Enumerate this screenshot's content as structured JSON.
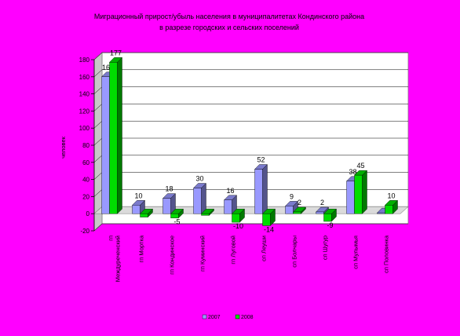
{
  "chart_data": {
    "type": "bar",
    "title": [
      "Миграционный прирост/убыль населения в муниципалитетах Кондинского района",
      "в разрезе городских и сельских поселений"
    ],
    "ylabel": "человек",
    "ylim": [
      -20,
      180
    ],
    "yticks": [
      -20,
      0,
      20,
      40,
      60,
      80,
      100,
      120,
      140,
      160,
      180
    ],
    "grid": true,
    "legend_position": "bottom",
    "categories": [
      [
        "гп",
        "Междуреченский"
      ],
      [
        "гп Мортка"
      ],
      [
        "гп Кондинское"
      ],
      [
        "гп Куминский"
      ],
      [
        "гп Луговой"
      ],
      [
        "сп Леуши"
      ],
      [
        "сп Болчары"
      ],
      [
        "сп Шугур"
      ],
      [
        "сп Мулымья"
      ],
      [
        "сп Половинка"
      ]
    ],
    "series": [
      {
        "name": "2007",
        "color": "#9999ff",
        "values": [
          160,
          10,
          18,
          30,
          16,
          52,
          9,
          2,
          38,
          1
        ],
        "labels": [
          "160",
          "10",
          "18",
          "30",
          "16",
          "52",
          "9",
          "2",
          "38",
          ""
        ]
      },
      {
        "name": "2008",
        "color": "#00dd00",
        "values": [
          177,
          -4,
          -5,
          -2,
          -10,
          -14,
          2,
          -9,
          45,
          10
        ],
        "labels": [
          "177",
          "",
          "-5",
          "",
          "-10",
          "-14",
          "2",
          "-9",
          "45",
          "10"
        ]
      }
    ]
  }
}
